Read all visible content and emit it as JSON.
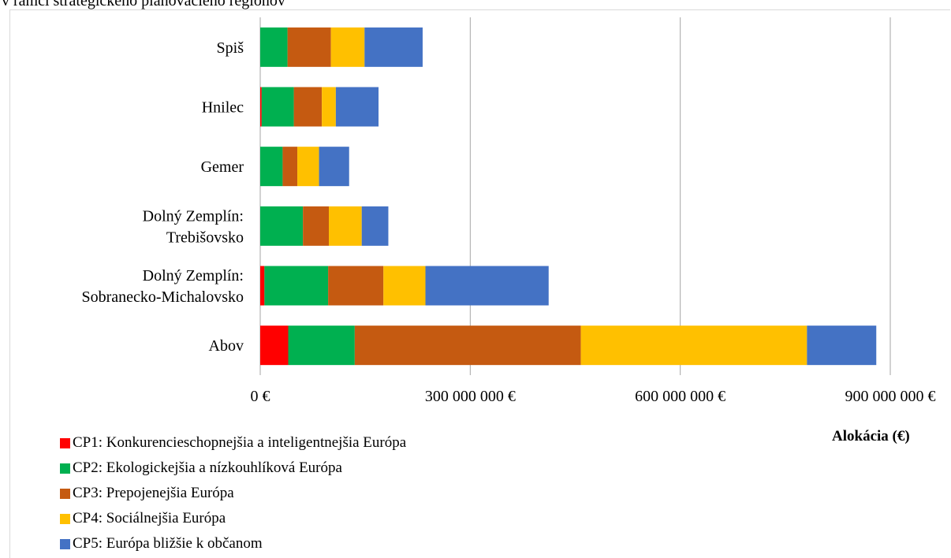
{
  "caption": "v rámci strategického plánovacieho regiónov",
  "chart_data": {
    "type": "bar",
    "orientation": "horizontal",
    "stacked": true,
    "categories": [
      "Spiš",
      "Hnilec",
      "Gemer",
      "Dolný Zemplín: Trebišovsko",
      "Dolný Zemplín: Sobranecko-Michalovsko",
      "Abov"
    ],
    "category_lines": [
      [
        "Spiš"
      ],
      [
        "Hnilec"
      ],
      [
        "Gemer"
      ],
      [
        "Dolný Zemplín:",
        "Trebišovsko"
      ],
      [
        "Dolný Zemplín:",
        "Sobranecko-Michalovsko"
      ],
      [
        "Abov"
      ]
    ],
    "series": [
      {
        "name": "CP1: Konkurencieschopnejšia a inteligentnejšia Európa",
        "color": "#ff0000",
        "values": [
          0,
          2000000,
          0,
          0,
          6000000,
          40000000
        ]
      },
      {
        "name": "CP2: Ekologickejšia a nízkouhlíková Európa",
        "color": "#00b050",
        "values": [
          39000000,
          46000000,
          32000000,
          61000000,
          91000000,
          95000000
        ]
      },
      {
        "name": "CP3: Prepojenejšia Európa",
        "color": "#c55a11",
        "values": [
          62000000,
          40000000,
          21000000,
          37000000,
          79000000,
          323000000
        ]
      },
      {
        "name": "CP4: Sociálnejšia Európa",
        "color": "#ffc000",
        "values": [
          48000000,
          20000000,
          31000000,
          47000000,
          60000000,
          323000000
        ]
      },
      {
        "name": "CP5: Európa bližšie k občanom",
        "color": "#4472c4",
        "values": [
          83000000,
          61000000,
          43000000,
          38000000,
          176000000,
          99000000
        ]
      }
    ],
    "xlim": [
      0,
      900000000
    ],
    "ticks": [
      0,
      300000000,
      600000000,
      900000000
    ],
    "tick_labels": [
      "0 €",
      "300 000 000 €",
      "600 000 000 €",
      "900 000 000 €"
    ],
    "xlabel": "Alokácia (€)",
    "grid": "vertical",
    "legend_position": "bottom-left"
  }
}
